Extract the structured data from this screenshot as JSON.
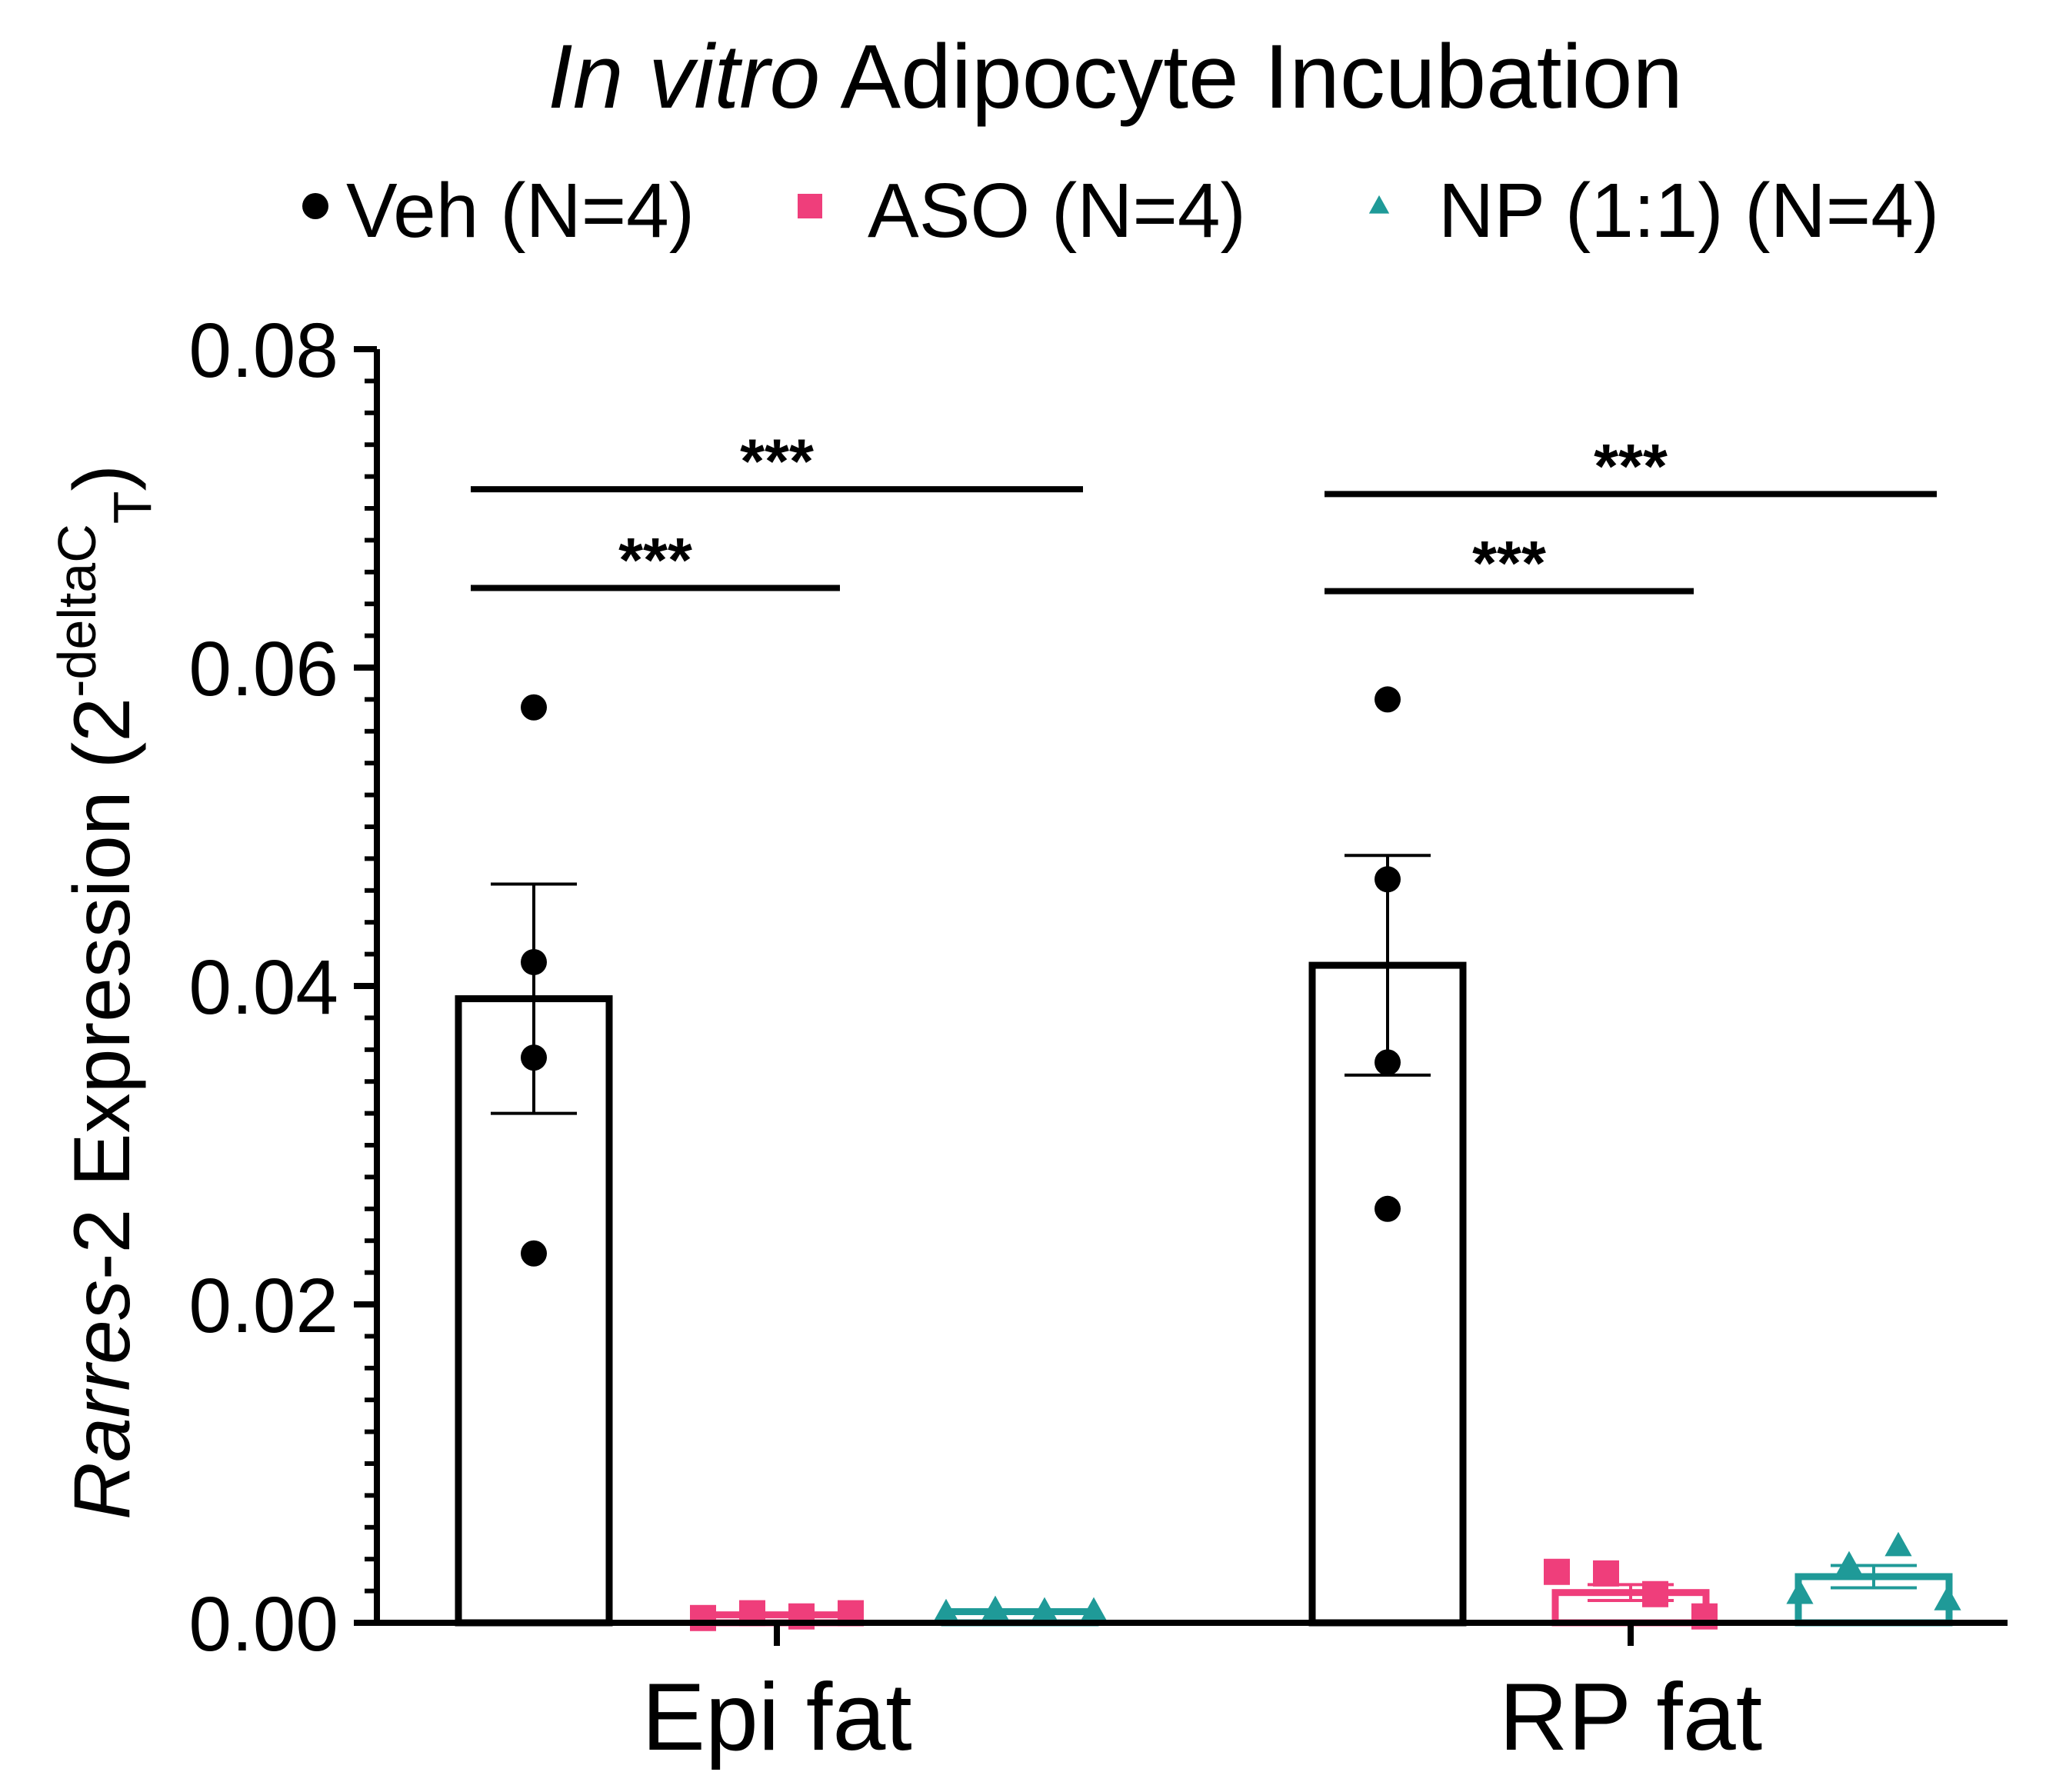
{
  "chart_data": {
    "type": "bar",
    "title": {
      "italic": "In vitro",
      "rest": " Adipocyte Incubation"
    },
    "ylabel": {
      "italic": "Rarres",
      "mid": "-2 Expression (2",
      "sup": "-deltaC",
      "sub": "T",
      "close": ")"
    },
    "xlabel": "",
    "ylim": [
      0,
      0.08
    ],
    "yticks": [
      0,
      0.02,
      0.04,
      0.06,
      0.08
    ],
    "ytick_labels": [
      "0.00",
      "0.02",
      "0.04",
      "0.06",
      "0.08"
    ],
    "yminor_step": 0.002,
    "categories": [
      "Epi fat",
      "RP fat"
    ],
    "series": [
      {
        "name": "Veh (N=4)",
        "color": "#000000",
        "marker": "circle",
        "values": [
          0.0392,
          0.0413
        ],
        "sem": [
          0.0072,
          0.0069
        ],
        "points": [
          [
            0.0575,
            0.0415,
            0.0355,
            0.0232
          ],
          [
            0.058,
            0.0467,
            0.0352,
            0.026
          ]
        ]
      },
      {
        "name": "ASO (N=4)",
        "color": "#ef3e7b",
        "marker": "square",
        "values": [
          0.0005,
          0.0019
        ],
        "sem": [
          0.0001,
          0.0005
        ],
        "points": [
          [
            0.0003,
            0.0006,
            0.0004,
            0.0006
          ],
          [
            0.0032,
            0.0031,
            0.0018,
            0.0004
          ]
        ]
      },
      {
        "name": "NP (1:1) (N=4)",
        "color": "#1f9a98",
        "marker": "triangle",
        "values": [
          0.0007,
          0.0029
        ],
        "sem": [
          0.0001,
          0.0007
        ],
        "points": [
          [
            0.0006,
            0.0008,
            0.0007,
            0.0007
          ],
          [
            0.0018,
            0.0036,
            0.0048,
            0.0014
          ]
        ]
      }
    ],
    "legend_position": "top",
    "significance": [
      {
        "category": "Epi fat",
        "from": "Veh (N=4)",
        "to": "ASO (N=4)",
        "y": 0.065,
        "label": "***"
      },
      {
        "category": "Epi fat",
        "from": "Veh (N=4)",
        "to": "NP (1:1) (N=4)",
        "y": 0.0712,
        "label": "***"
      },
      {
        "category": "RP fat",
        "from": "Veh (N=4)",
        "to": "ASO (N=4)",
        "y": 0.0648,
        "label": "***"
      },
      {
        "category": "RP fat",
        "from": "Veh (N=4)",
        "to": "NP (1:1) (N=4)",
        "y": 0.0709,
        "label": "***"
      }
    ]
  }
}
